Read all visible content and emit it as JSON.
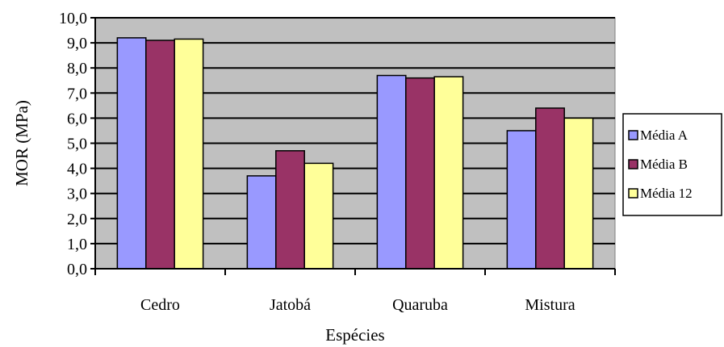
{
  "chart_data": {
    "type": "bar",
    "title": "",
    "xlabel": "Espécies",
    "ylabel": "MOR (MPa)",
    "categories": [
      "Cedro",
      "Jatobá",
      "Quaruba",
      "Mistura"
    ],
    "series": [
      {
        "name": "Média A",
        "color": "#9999ff",
        "values": [
          9.2,
          3.7,
          7.7,
          5.5
        ]
      },
      {
        "name": "Média B",
        "color": "#993366",
        "values": [
          9.1,
          4.7,
          7.6,
          6.4
        ]
      },
      {
        "name": "Média 12",
        "color": "#ffff99",
        "values": [
          9.15,
          4.2,
          7.65,
          6.0
        ]
      }
    ],
    "ylim": [
      0,
      10
    ],
    "y_tick_step": 1,
    "y_tick_labels": [
      "0,0",
      "1,0",
      "2,0",
      "3,0",
      "4,0",
      "5,0",
      "6,0",
      "7,0",
      "8,0",
      "9,0",
      "10,0"
    ],
    "grid": true,
    "plot_background": "#c0c0c0",
    "legend_position": "right"
  }
}
